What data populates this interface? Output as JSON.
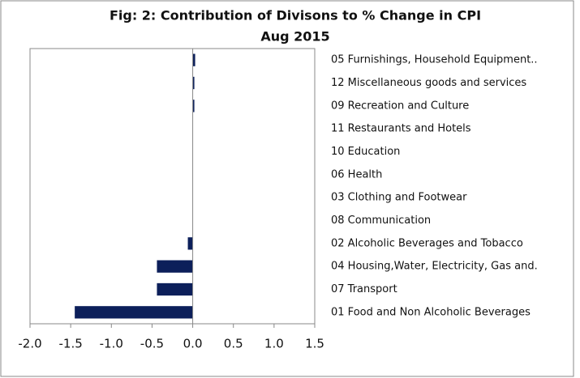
{
  "chart_data": {
    "type": "hbar",
    "title": "Fig: 2: Contribution of Divisons to % Change in CPI",
    "subtitle": "Aug 2015",
    "categories": [
      "05 Furnishings, Household Equipment..",
      "12 Miscellaneous goods and services",
      "09 Recreation and Culture",
      "11 Restaurants and Hotels",
      "10 Education",
      "06 Health",
      "03 Clothing and Footwear",
      "08 Communication",
      "02 Alcoholic Beverages and Tobacco",
      "04 Housing,Water, Electricity, Gas and.",
      "07 Transport",
      "01 Food and Non Alcoholic Beverages"
    ],
    "values": [
      0.03,
      0.02,
      0.02,
      0.0,
      0.0,
      0.0,
      0.0,
      0.0,
      -0.06,
      -0.44,
      -0.44,
      -1.45
    ],
    "color": "#0c1f5a",
    "xlim": [
      -2,
      1.5
    ],
    "xticks": [
      {
        "value": -2,
        "label": "-2.0"
      },
      -1.5,
      {
        "value": -1,
        "label": "-1.0"
      },
      -0.5,
      {
        "value": 0,
        "label": "0.0"
      },
      0.5,
      {
        "value": 1,
        "label": "1.0"
      },
      1.5
    ]
  }
}
